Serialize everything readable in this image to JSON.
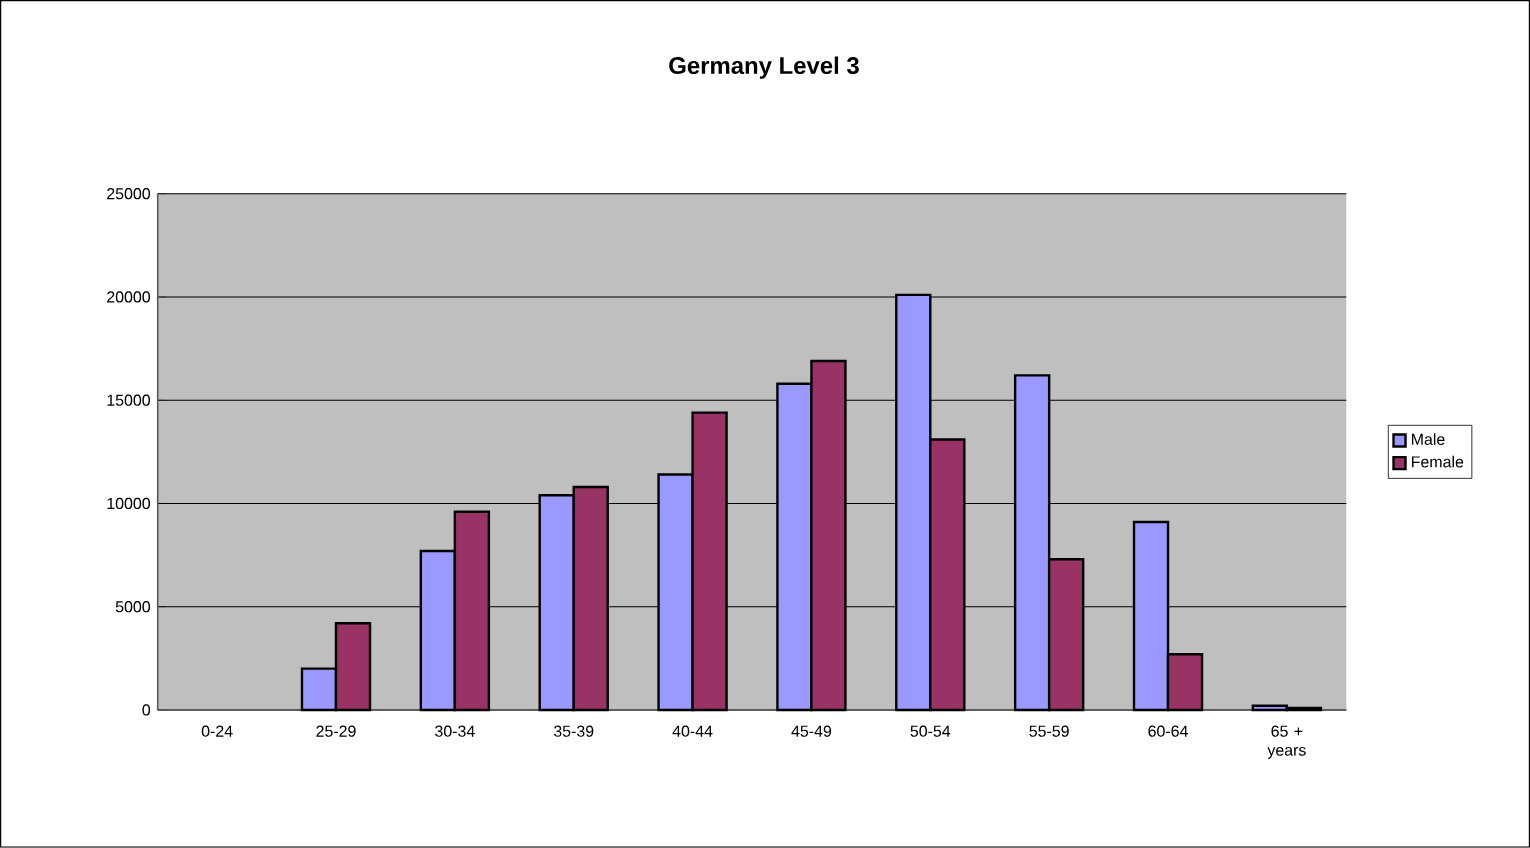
{
  "chart_data": {
    "type": "bar",
    "title": "Germany Level 3",
    "categories": [
      "0-24",
      "25-29",
      "30-34",
      "35-39",
      "40-44",
      "45-49",
      "50-54",
      "55-59",
      "60-64",
      "65 + years"
    ],
    "series": [
      {
        "name": "Male",
        "color": "#9999ff",
        "values": [
          null,
          2000,
          7700,
          10400,
          11400,
          15800,
          20100,
          16200,
          9100,
          200
        ]
      },
      {
        "name": "Female",
        "color": "#993366",
        "values": [
          null,
          4200,
          9600,
          10800,
          14400,
          16900,
          13100,
          7300,
          2700,
          100
        ]
      }
    ],
    "ylim": [
      0,
      25000
    ],
    "yticks": [
      0,
      5000,
      10000,
      15000,
      20000,
      25000
    ],
    "grid": "y",
    "legend": "right"
  }
}
